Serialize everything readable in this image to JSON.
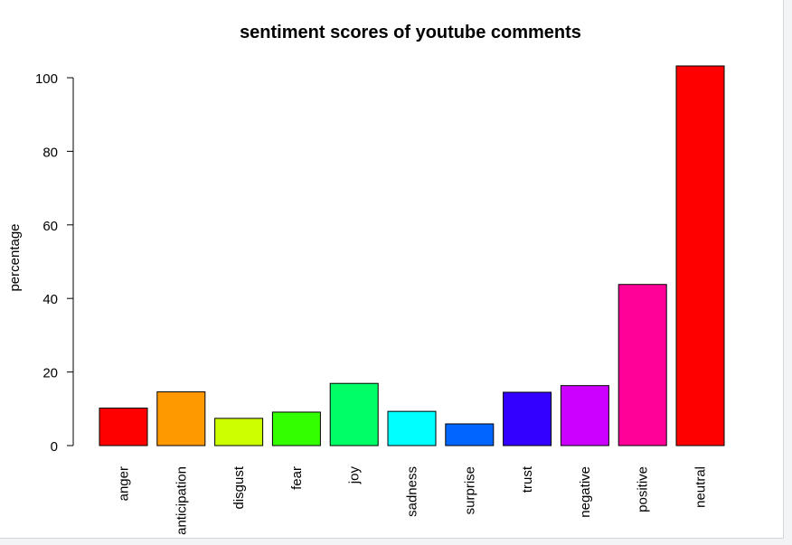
{
  "chart_data": {
    "type": "bar",
    "title": "sentiment scores of youtube comments",
    "xlabel": "",
    "ylabel": "percentage",
    "ylim": [
      0,
      103
    ],
    "yticks": [
      0,
      20,
      40,
      60,
      80,
      100
    ],
    "categories": [
      "anger",
      "anticipation",
      "disgust",
      "fear",
      "joy",
      "sadness",
      "surprise",
      "trust",
      "negative",
      "positive",
      "neutral"
    ],
    "values": [
      10.2,
      14.6,
      7.4,
      9.1,
      16.9,
      9.3,
      5.9,
      14.5,
      16.3,
      43.8,
      103.2
    ],
    "colors": [
      "#FF0000",
      "#FF9900",
      "#CCFF00",
      "#33FF00",
      "#00FF66",
      "#00FFFF",
      "#0066FF",
      "#3300FF",
      "#CC00FF",
      "#FF0099",
      "#FF0000"
    ],
    "grid": false,
    "legend": "none"
  }
}
